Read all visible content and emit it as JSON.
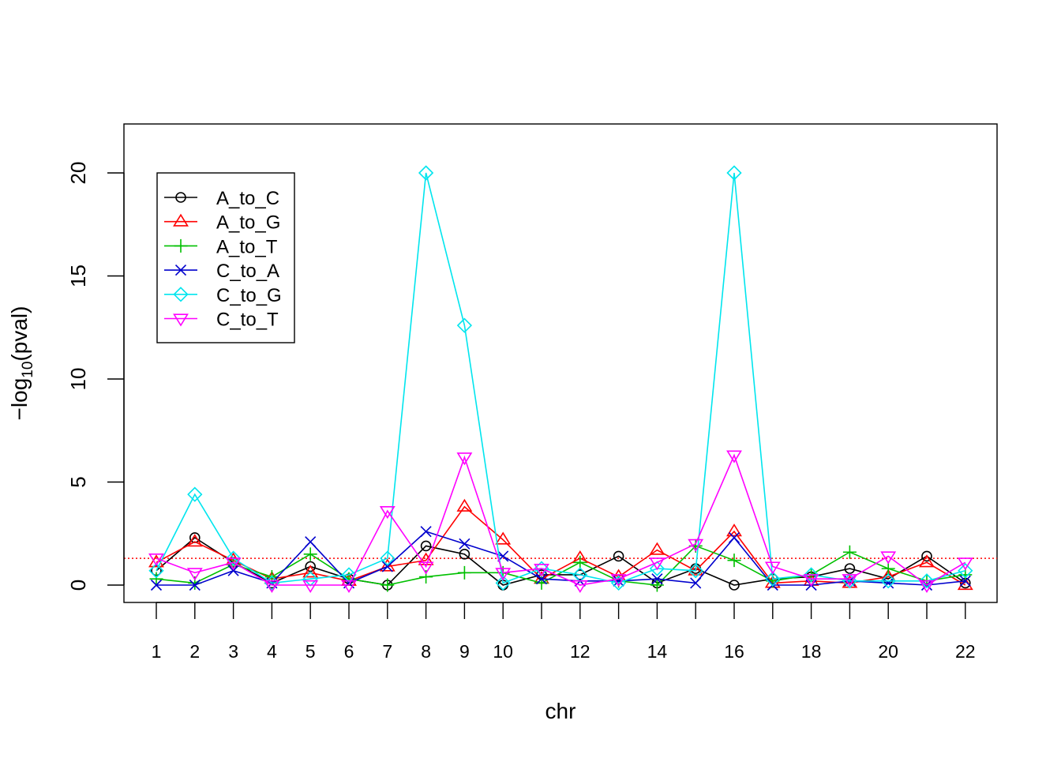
{
  "chart_data": {
    "type": "line",
    "title": "",
    "xlabel": "chr",
    "ylabel": {
      "prefix": "−log",
      "sub": "10",
      "suffix": "(pval)"
    },
    "categories": [
      1,
      2,
      3,
      4,
      5,
      6,
      7,
      8,
      9,
      10,
      11,
      12,
      13,
      14,
      15,
      16,
      17,
      18,
      19,
      20,
      21,
      22
    ],
    "x_tick_labels": [
      "1",
      "2",
      "3",
      "4",
      "5",
      "6",
      "7",
      "8",
      "9",
      "10",
      "",
      "12",
      "",
      "14",
      "",
      "16",
      "",
      "18",
      "",
      "20",
      "",
      "22"
    ],
    "y_ticks": [
      0,
      5,
      10,
      15,
      20
    ],
    "ylim": [
      -0.8,
      22
    ],
    "grid": false,
    "legend_position": "top-left",
    "threshold": {
      "value": 1.3,
      "color": "#ff0000",
      "style": "dotted"
    },
    "series": [
      {
        "name": "A_to_C",
        "color": "#000000",
        "marker": "circle",
        "values": [
          0.7,
          2.3,
          1.1,
          0.1,
          0.9,
          0.3,
          0.0,
          1.9,
          1.5,
          0.0,
          0.5,
          0.5,
          1.4,
          0.1,
          0.8,
          0.0,
          0.3,
          0.4,
          0.8,
          0.3,
          1.4,
          0.1
        ]
      },
      {
        "name": "A_to_G",
        "color": "#ff0000",
        "marker": "triangle",
        "values": [
          1.1,
          2.1,
          1.2,
          0.3,
          0.6,
          0.2,
          0.9,
          1.2,
          3.8,
          2.2,
          0.3,
          1.3,
          0.4,
          1.7,
          0.7,
          2.6,
          0.1,
          0.2,
          0.1,
          0.4,
          1.1,
          0.0
        ]
      },
      {
        "name": "A_to_T",
        "color": "#00c000",
        "marker": "plus",
        "values": [
          0.3,
          0.1,
          1.0,
          0.4,
          1.5,
          0.3,
          0.0,
          0.4,
          0.6,
          0.6,
          0.1,
          1.1,
          0.2,
          0.0,
          1.9,
          1.2,
          0.2,
          0.5,
          1.6,
          0.8,
          0.2,
          0.5
        ]
      },
      {
        "name": "C_to_A",
        "color": "#0000cd",
        "marker": "cross",
        "values": [
          0.0,
          0.0,
          0.7,
          0.1,
          2.1,
          0.1,
          0.9,
          2.6,
          2.0,
          1.4,
          0.3,
          0.2,
          0.2,
          0.3,
          0.1,
          2.3,
          0.0,
          0.0,
          0.2,
          0.1,
          0.0,
          0.2
        ]
      },
      {
        "name": "C_to_G",
        "color": "#00e5ee",
        "marker": "diamond",
        "values": [
          0.7,
          4.4,
          1.3,
          0.1,
          0.3,
          0.5,
          1.3,
          20.0,
          12.6,
          0.1,
          0.8,
          0.5,
          0.1,
          0.8,
          0.7,
          20.0,
          0.3,
          0.5,
          0.2,
          0.2,
          0.2,
          0.7
        ]
      },
      {
        "name": "C_to_T",
        "color": "#ff00ff",
        "marker": "triangle-down",
        "values": [
          1.3,
          0.6,
          1.1,
          0.0,
          0.0,
          0.0,
          3.6,
          0.9,
          6.2,
          0.6,
          0.8,
          0.0,
          0.3,
          1.1,
          2.0,
          6.3,
          0.9,
          0.3,
          0.3,
          1.4,
          0.0,
          1.1
        ]
      }
    ]
  }
}
